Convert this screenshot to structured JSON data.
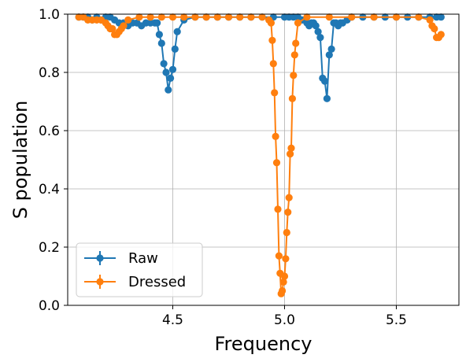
{
  "chart_data": {
    "type": "line",
    "title": "",
    "xlabel": "Frequency",
    "ylabel": "S population",
    "xlim": [
      4.03,
      5.78
    ],
    "ylim": [
      0.0,
      1.0
    ],
    "xticks": [
      4.5,
      5.0,
      5.5
    ],
    "xtick_labels": [
      "4.5",
      "5.0",
      "5.5"
    ],
    "yticks": [
      0.0,
      0.2,
      0.4,
      0.6,
      0.8,
      1.0
    ],
    "ytick_labels": [
      "0.0",
      "0.2",
      "0.4",
      "0.6",
      "0.8",
      "1.0"
    ],
    "grid": true,
    "legend_position": "lower-left",
    "series": [
      {
        "name": "Raw",
        "color": "#1f77b4",
        "marker": "circle",
        "x": [
          4.08,
          4.1,
          4.12,
          4.14,
          4.16,
          4.18,
          4.2,
          4.22,
          4.24,
          4.26,
          4.28,
          4.3,
          4.32,
          4.34,
          4.36,
          4.38,
          4.4,
          4.42,
          4.43,
          4.44,
          4.45,
          4.46,
          4.47,
          4.48,
          4.49,
          4.5,
          4.51,
          4.52,
          4.55,
          4.6,
          4.65,
          4.7,
          4.75,
          4.8,
          4.85,
          4.9,
          4.95,
          5.0,
          5.02,
          5.04,
          5.06,
          5.08,
          5.1,
          5.11,
          5.12,
          5.13,
          5.14,
          5.15,
          5.16,
          5.17,
          5.18,
          5.19,
          5.2,
          5.21,
          5.22,
          5.23,
          5.24,
          5.25,
          5.26,
          5.28,
          5.3,
          5.35,
          5.4,
          5.45,
          5.5,
          5.55,
          5.6,
          5.65,
          5.68,
          5.7
        ],
        "y": [
          0.99,
          0.99,
          0.99,
          0.98,
          0.99,
          0.98,
          0.99,
          0.99,
          0.98,
          0.97,
          0.97,
          0.96,
          0.97,
          0.97,
          0.96,
          0.97,
          0.97,
          0.97,
          0.97,
          0.93,
          0.9,
          0.83,
          0.8,
          0.74,
          0.78,
          0.81,
          0.88,
          0.94,
          0.98,
          0.99,
          0.99,
          0.99,
          0.99,
          0.99,
          0.99,
          0.99,
          0.99,
          0.99,
          0.99,
          0.99,
          0.99,
          0.98,
          0.97,
          0.96,
          0.97,
          0.97,
          0.96,
          0.94,
          0.92,
          0.78,
          0.77,
          0.71,
          0.86,
          0.88,
          0.97,
          0.97,
          0.96,
          0.97,
          0.97,
          0.98,
          0.99,
          0.99,
          0.99,
          0.99,
          0.99,
          0.99,
          0.99,
          0.99,
          0.99,
          0.99
        ]
      },
      {
        "name": "Dressed",
        "color": "#ff7f0e",
        "marker": "circle",
        "x": [
          4.08,
          4.1,
          4.12,
          4.14,
          4.16,
          4.18,
          4.2,
          4.21,
          4.22,
          4.23,
          4.24,
          4.25,
          4.26,
          4.27,
          4.28,
          4.3,
          4.35,
          4.4,
          4.45,
          4.5,
          4.55,
          4.6,
          4.65,
          4.7,
          4.75,
          4.8,
          4.85,
          4.9,
          4.93,
          4.94,
          4.945,
          4.95,
          4.955,
          4.96,
          4.965,
          4.97,
          4.975,
          4.98,
          4.985,
          4.99,
          4.995,
          5.0,
          5.005,
          5.01,
          5.015,
          5.02,
          5.025,
          5.03,
          5.035,
          5.04,
          5.045,
          5.05,
          5.06,
          5.1,
          5.2,
          5.3,
          5.4,
          5.5,
          5.6,
          5.65,
          5.66,
          5.67,
          5.68,
          5.69,
          5.7
        ],
        "y": [
          0.99,
          0.99,
          0.98,
          0.98,
          0.98,
          0.98,
          0.97,
          0.96,
          0.95,
          0.95,
          0.93,
          0.93,
          0.94,
          0.95,
          0.96,
          0.98,
          0.99,
          0.99,
          0.99,
          0.99,
          0.99,
          0.99,
          0.99,
          0.99,
          0.99,
          0.99,
          0.99,
          0.99,
          0.98,
          0.97,
          0.91,
          0.83,
          0.73,
          0.58,
          0.49,
          0.33,
          0.17,
          0.11,
          0.04,
          0.05,
          0.08,
          0.1,
          0.16,
          0.25,
          0.32,
          0.37,
          0.52,
          0.54,
          0.71,
          0.79,
          0.86,
          0.9,
          0.97,
          0.99,
          0.99,
          0.99,
          0.99,
          0.99,
          0.99,
          0.98,
          0.96,
          0.95,
          0.92,
          0.92,
          0.93
        ]
      }
    ]
  }
}
